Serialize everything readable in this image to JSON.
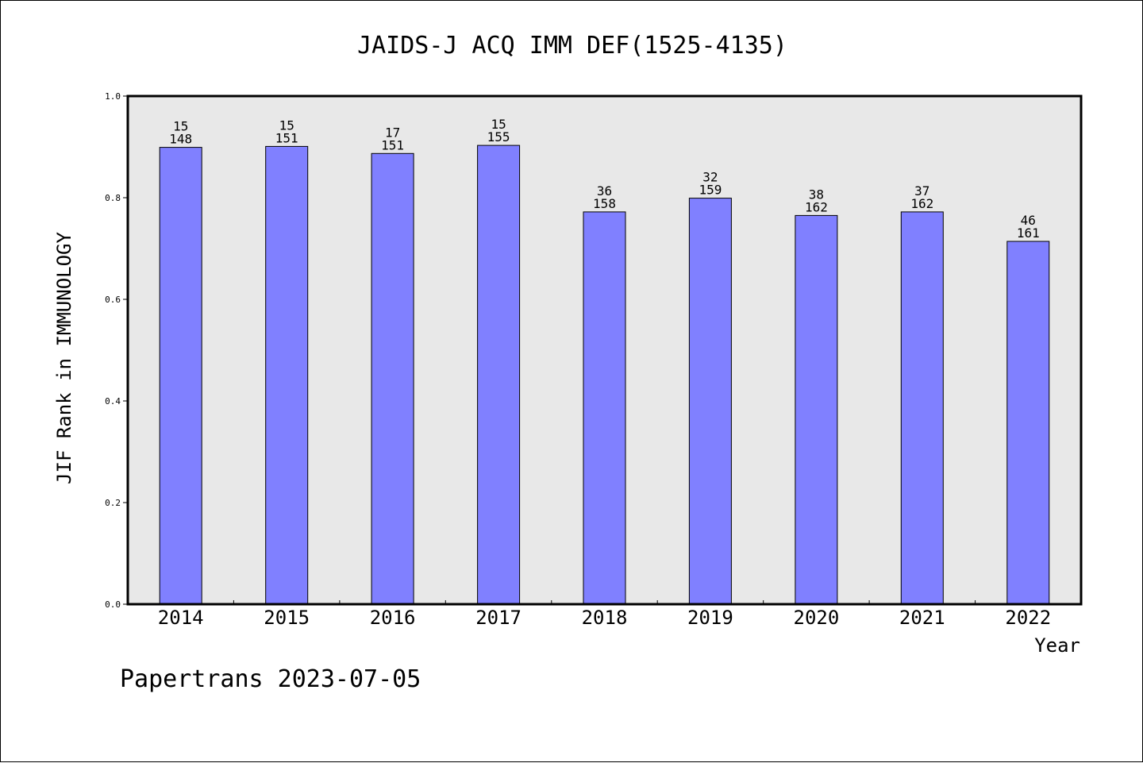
{
  "chart_data": {
    "type": "bar",
    "title": "JAIDS-J ACQ IMM DEF(1525-4135)",
    "xlabel": "Year",
    "ylabel": "JIF Rank in IMMUNOLOGY",
    "ylim": [
      0,
      1.0
    ],
    "yticks": [
      "0.0",
      "0.2",
      "0.4",
      "0.6",
      "0.8",
      "1.0"
    ],
    "categories": [
      "2014",
      "2015",
      "2016",
      "2017",
      "2018",
      "2019",
      "2020",
      "2021",
      "2022"
    ],
    "values": [
      0.899,
      0.901,
      0.887,
      0.903,
      0.772,
      0.799,
      0.765,
      0.772,
      0.714
    ],
    "rank_labels": [
      "15",
      "15",
      "17",
      "15",
      "36",
      "32",
      "38",
      "37",
      "46"
    ],
    "total_labels": [
      "148",
      "151",
      "151",
      "155",
      "158",
      "159",
      "162",
      "162",
      "161"
    ],
    "bar_color": "#8080ff",
    "plot_background": "#e8e8e8",
    "grid": false
  },
  "footer": "Papertrans 2023-07-05"
}
